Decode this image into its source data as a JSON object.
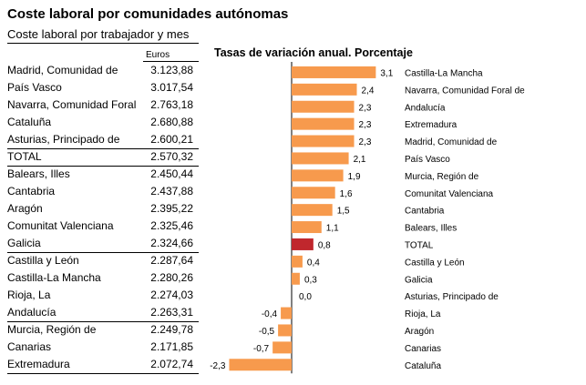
{
  "title": "Coste laboral por comunidades autónomas",
  "table": {
    "subtitle": "Coste laboral por trabajador y mes",
    "unit": "Euros",
    "rows": [
      {
        "name": "Madrid, Comunidad de",
        "value": "3.123,88"
      },
      {
        "name": "País Vasco",
        "value": "3.017,54"
      },
      {
        "name": "Navarra, Comunidad Foral",
        "value": "2.763,18"
      },
      {
        "name": "Cataluña",
        "value": "2.680,88"
      },
      {
        "name": "Asturias, Principado de",
        "value": "2.600,21"
      },
      {
        "name": "TOTAL",
        "value": "2.570,32"
      },
      {
        "name": "Balears, Illes",
        "value": "2.450,44"
      },
      {
        "name": "Cantabria",
        "value": "2.437,88"
      },
      {
        "name": "Aragón",
        "value": "2.395,22"
      },
      {
        "name": "Comunitat Valenciana",
        "value": "2.325,46"
      },
      {
        "name": "Galicia",
        "value": "2.324,66"
      },
      {
        "name": "Castilla y León",
        "value": "2.287,64"
      },
      {
        "name": "Castilla-La Mancha",
        "value": "2.280,26"
      },
      {
        "name": "Rioja, La",
        "value": "2.274,03"
      },
      {
        "name": "Andalucía",
        "value": "2.263,31"
      },
      {
        "name": "Murcia, Región de",
        "value": "2.249,78"
      },
      {
        "name": "Canarias",
        "value": "2.171,85"
      },
      {
        "name": "Extremadura",
        "value": "2.072,74"
      }
    ]
  },
  "colors": {
    "bar": "#f79a4d",
    "highlight": "#c0272d"
  },
  "chart_data": {
    "type": "bar",
    "orientation": "horizontal",
    "title": "Tasas de variación anual. Porcentaje",
    "categories": [
      "Castilla-La Mancha",
      "Navarra, Comunidad Foral de",
      "Andalucía",
      "Extremadura",
      "Madrid, Comunidad de",
      "País Vasco",
      "Murcia, Región de",
      "Comunitat Valenciana",
      "Cantabria",
      "Balears, Illes",
      "TOTAL",
      "Castilla y León",
      "Galicia",
      "Asturias, Principado de",
      "Rioja, La",
      "Aragón",
      "Canarias",
      "Cataluña"
    ],
    "values": [
      3.1,
      2.4,
      2.3,
      2.3,
      2.3,
      2.1,
      1.9,
      1.6,
      1.5,
      1.1,
      0.8,
      0.4,
      0.3,
      0.0,
      -0.4,
      -0.5,
      -0.7,
      -2.3
    ],
    "labels": [
      "3,1",
      "2,4",
      "2,3",
      "2,3",
      "2,3",
      "2,1",
      "1,9",
      "1,6",
      "1,5",
      "1,1",
      "0,8",
      "0,4",
      "0,3",
      "0,0",
      "-0,4",
      "-0,5",
      "-0,7",
      "-2,3"
    ],
    "highlight": "TOTAL",
    "xlim": [
      -2.3,
      3.1
    ]
  }
}
